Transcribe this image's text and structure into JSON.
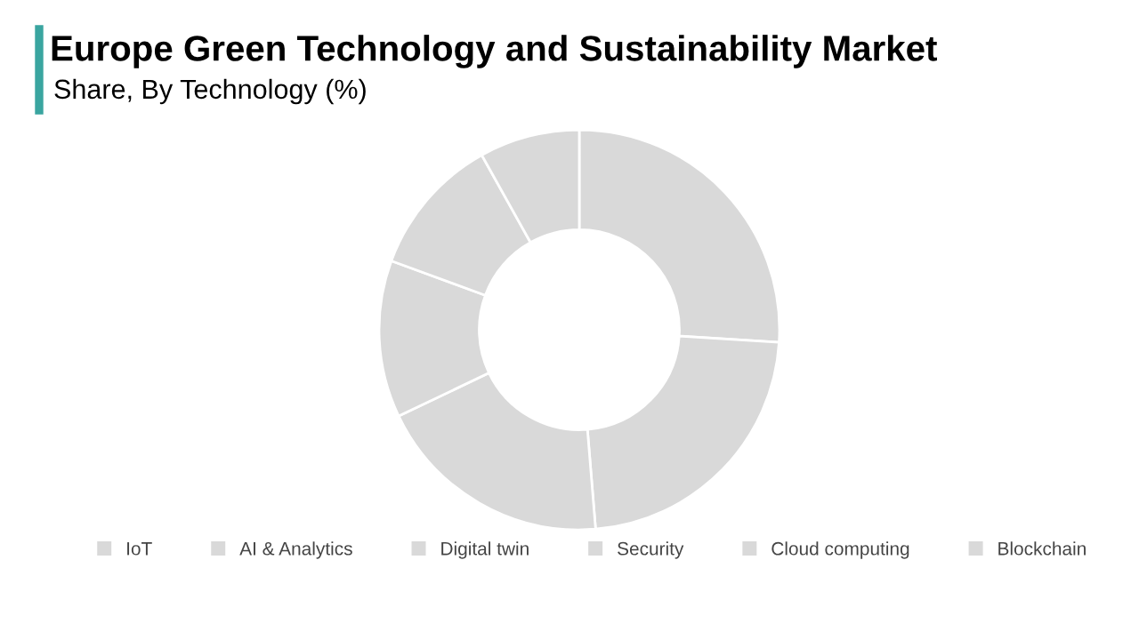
{
  "chart_data": {
    "type": "donut",
    "title": "Europe Green Technology and Sustainability Market",
    "subtitle": "Share, By Technology (%)",
    "categories": [
      "IoT",
      "AI & Analytics",
      "Digital twin",
      "Security",
      "Cloud computing",
      "Blockchain"
    ],
    "values": [
      26,
      22.7,
      19.2,
      12.7,
      11.3,
      8.1
    ],
    "colors": [
      "#d9d9d9",
      "#d9d9d9",
      "#d9d9d9",
      "#d9d9d9",
      "#d9d9d9",
      "#d9d9d9"
    ],
    "legend": "bottom"
  }
}
